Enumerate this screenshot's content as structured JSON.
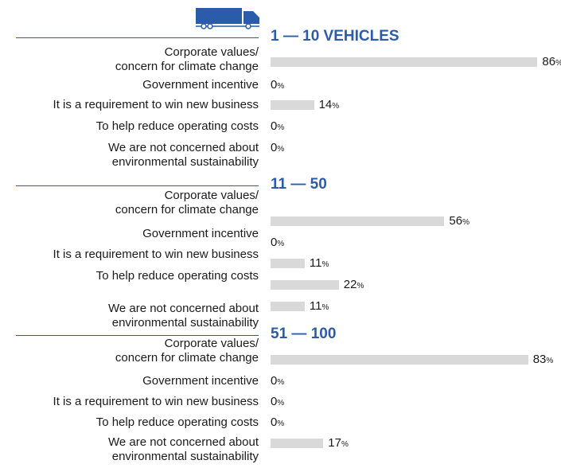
{
  "chart_data": [
    {
      "type": "bar",
      "title": "1 — 10 VEHICLES",
      "color": "#d9d9d9",
      "categories": [
        "Corporate values/\nconcern for climate change",
        "Government incentive",
        "It is a requirement to win new business",
        "To help reduce operating costs",
        "We are not concerned about\nenvironmental sustainability"
      ],
      "values": [
        86,
        0,
        14,
        0,
        0
      ],
      "value_labels": [
        "86%",
        "0%",
        "14%",
        "0%",
        "0%"
      ]
    },
    {
      "type": "bar",
      "title": "11 — 50",
      "color": "#d9d9d9",
      "categories": [
        "Corporate values/\nconcern for climate change",
        "Government incentive",
        "It is a requirement to win new business",
        "To help reduce operating costs",
        "We are not concerned about\nenvironmental sustainability"
      ],
      "values": [
        56,
        0,
        11,
        22,
        11
      ],
      "value_labels": [
        "56%",
        "0%",
        "11%",
        "22%",
        "11%"
      ]
    },
    {
      "type": "bar",
      "title": "51 — 100",
      "color": "#d9d9d9",
      "categories": [
        "Corporate values/\nconcern for climate change",
        "Government incentive",
        "It is a requirement to win new business",
        "To help reduce operating costs",
        "We are not concerned about\nenvironmental sustainability"
      ],
      "values": [
        83,
        0,
        0,
        0,
        17
      ],
      "value_labels": [
        "83%",
        "0%",
        "0%",
        "0%",
        "17%"
      ]
    }
  ]
}
